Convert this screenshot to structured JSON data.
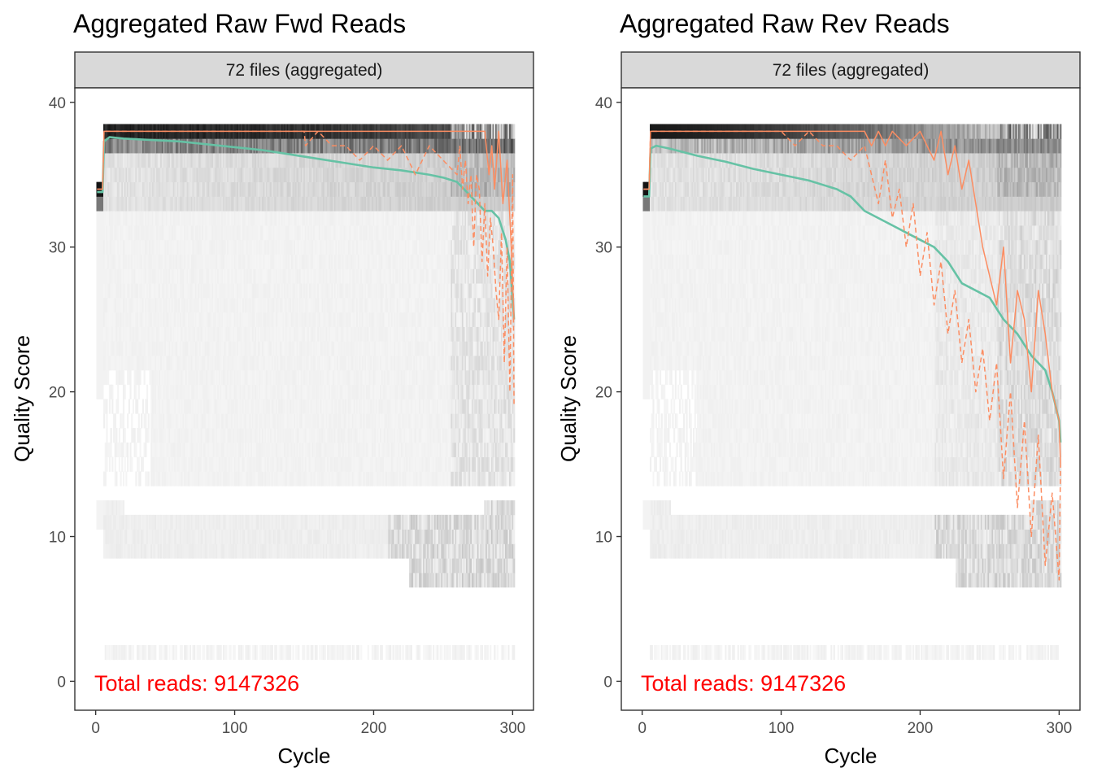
{
  "colors": {
    "mean_line": "#66c2a5",
    "quantile_lines": "#fc8d62",
    "annotation": "#ff0000",
    "strip_fill": "#d9d9d9",
    "panel_border": "#333333"
  },
  "chart_data": [
    {
      "type": "heatmap",
      "title": "Aggregated Raw Fwd Reads",
      "facet_label": "72 files (aggregated)",
      "xlabel": "Cycle",
      "ylabel": "Quality Score",
      "xlim": [
        -15,
        315
      ],
      "ylim": [
        -2,
        41
      ],
      "x_ticks": [
        "0",
        "100",
        "200",
        "300"
      ],
      "y_ticks": [
        "0",
        "10",
        "20",
        "30",
        "40"
      ],
      "annotation": "Total reads: 9147326",
      "grid": false,
      "series": [
        {
          "kind": "mean",
          "style": "solid",
          "x": [
            1,
            5,
            6,
            10,
            20,
            40,
            60,
            80,
            100,
            120,
            140,
            160,
            180,
            200,
            220,
            240,
            250,
            260,
            265,
            270,
            275,
            280,
            285,
            290,
            295,
            298,
            301
          ],
          "y": [
            33.8,
            33.8,
            37.3,
            37.6,
            37.5,
            37.4,
            37.3,
            37.1,
            36.9,
            36.7,
            36.4,
            36.1,
            35.8,
            35.5,
            35.3,
            35.0,
            34.8,
            34.5,
            34.0,
            33.5,
            33.0,
            32.5,
            32.5,
            32.0,
            30.5,
            29.0,
            25.0
          ]
        },
        {
          "kind": "median",
          "style": "solid",
          "x": [
            1,
            5,
            6,
            280,
            283,
            285,
            287,
            290,
            293,
            296,
            299,
            301
          ],
          "y": [
            34,
            34,
            38,
            38,
            35,
            37,
            34,
            38,
            33,
            36,
            30,
            25
          ]
        },
        {
          "kind": "q25",
          "style": "dashed",
          "x": [
            1,
            5,
            6,
            150,
            151,
            160,
            170,
            180,
            190,
            200,
            210,
            220,
            230,
            240,
            250,
            260,
            262,
            264,
            266,
            268,
            270,
            272,
            274,
            276,
            278,
            280,
            282,
            284,
            286,
            288,
            290,
            292,
            294,
            296,
            298,
            300,
            301
          ],
          "y": [
            34,
            34,
            38,
            38,
            37,
            38,
            37,
            37,
            36,
            37,
            36,
            37,
            35,
            37,
            36,
            35,
            37,
            34,
            36,
            33,
            35,
            30,
            35,
            34,
            29,
            33,
            28,
            32,
            30,
            27,
            25,
            31,
            22,
            30,
            20,
            35,
            19
          ]
        }
      ]
    },
    {
      "type": "heatmap",
      "title": "Aggregated Raw Rev Reads",
      "facet_label": "72 files (aggregated)",
      "xlabel": "Cycle",
      "ylabel": "Quality Score",
      "xlim": [
        -15,
        315
      ],
      "ylim": [
        -2,
        41
      ],
      "x_ticks": [
        "0",
        "100",
        "200",
        "300"
      ],
      "y_ticks": [
        "0",
        "10",
        "20",
        "30",
        "40"
      ],
      "annotation": "Total reads: 9147326",
      "grid": false,
      "series": [
        {
          "kind": "mean",
          "style": "solid",
          "x": [
            1,
            5,
            6,
            10,
            20,
            40,
            60,
            80,
            100,
            120,
            140,
            150,
            160,
            170,
            180,
            190,
            200,
            210,
            220,
            230,
            240,
            250,
            260,
            270,
            280,
            290,
            295,
            300,
            301
          ],
          "y": [
            33.5,
            33.5,
            36.8,
            37.0,
            36.8,
            36.3,
            35.9,
            35.4,
            35.0,
            34.6,
            34.0,
            33.5,
            32.5,
            32.0,
            31.5,
            31.0,
            30.5,
            30.0,
            29.0,
            27.5,
            27.0,
            26.5,
            25.0,
            24.0,
            22.5,
            21.5,
            20.0,
            18.0,
            16.5
          ]
        },
        {
          "kind": "median",
          "style": "solid",
          "x": [
            1,
            5,
            6,
            160,
            165,
            170,
            175,
            180,
            190,
            200,
            210,
            215,
            220,
            225,
            230,
            235,
            240,
            245,
            250,
            255,
            260,
            265,
            270,
            275,
            280,
            285,
            290,
            295,
            300,
            301
          ],
          "y": [
            34,
            34,
            38,
            38,
            37,
            38,
            37,
            38,
            37,
            38,
            36,
            38,
            35,
            37,
            34,
            36,
            33,
            30,
            28,
            26,
            30,
            22,
            27,
            25,
            20,
            27,
            24,
            20,
            18,
            15
          ]
        },
        {
          "kind": "q25",
          "style": "dashed",
          "x": [
            1,
            5,
            6,
            100,
            110,
            120,
            130,
            140,
            150,
            160,
            165,
            170,
            175,
            180,
            185,
            190,
            195,
            200,
            205,
            210,
            215,
            220,
            225,
            230,
            235,
            240,
            245,
            250,
            255,
            260,
            265,
            270,
            275,
            280,
            285,
            290,
            295,
            300,
            301
          ],
          "y": [
            34,
            34,
            38,
            38,
            37,
            38,
            37,
            37,
            36,
            37,
            35,
            33,
            36,
            32,
            34,
            30,
            33,
            28,
            31,
            26,
            29,
            24,
            27,
            22,
            25,
            20,
            23,
            18,
            22,
            14,
            20,
            12,
            18,
            10,
            17,
            8,
            13,
            7,
            15
          ]
        }
      ]
    }
  ]
}
